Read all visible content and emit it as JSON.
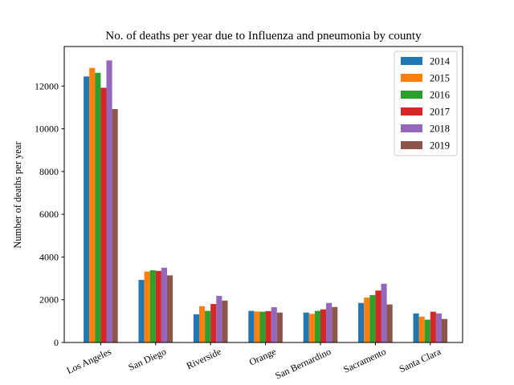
{
  "chart_data": {
    "type": "bar",
    "title": "No. of deaths per year due to Influenza and pneumonia by county",
    "xlabel": "",
    "ylabel": "Number of deaths per year",
    "ylim": [
      0,
      13850
    ],
    "yticks": [
      0,
      2000,
      4000,
      6000,
      8000,
      10000,
      12000
    ],
    "grid": false,
    "legend_position": "top-right",
    "categories": [
      "Los Angeles",
      "San Diego",
      "Riverside",
      "Orange",
      "San Bernardino",
      "Sacramento",
      "Santa Clara"
    ],
    "series": [
      {
        "name": "2014",
        "color": "#1f77b4",
        "values": [
          12450,
          2930,
          1320,
          1480,
          1400,
          1850,
          1360
        ]
      },
      {
        "name": "2015",
        "color": "#ff7f0e",
        "values": [
          12850,
          3320,
          1700,
          1450,
          1340,
          2100,
          1210
        ]
      },
      {
        "name": "2016",
        "color": "#2ca02c",
        "values": [
          12620,
          3380,
          1480,
          1440,
          1480,
          2220,
          1070
        ]
      },
      {
        "name": "2017",
        "color": "#d62728",
        "values": [
          11920,
          3350,
          1800,
          1470,
          1550,
          2430,
          1440
        ]
      },
      {
        "name": "2018",
        "color": "#9467bd",
        "values": [
          13200,
          3500,
          2180,
          1650,
          1850,
          2750,
          1360
        ]
      },
      {
        "name": "2019",
        "color": "#8c564b",
        "values": [
          10920,
          3140,
          1960,
          1400,
          1660,
          1780,
          1100
        ]
      }
    ]
  }
}
